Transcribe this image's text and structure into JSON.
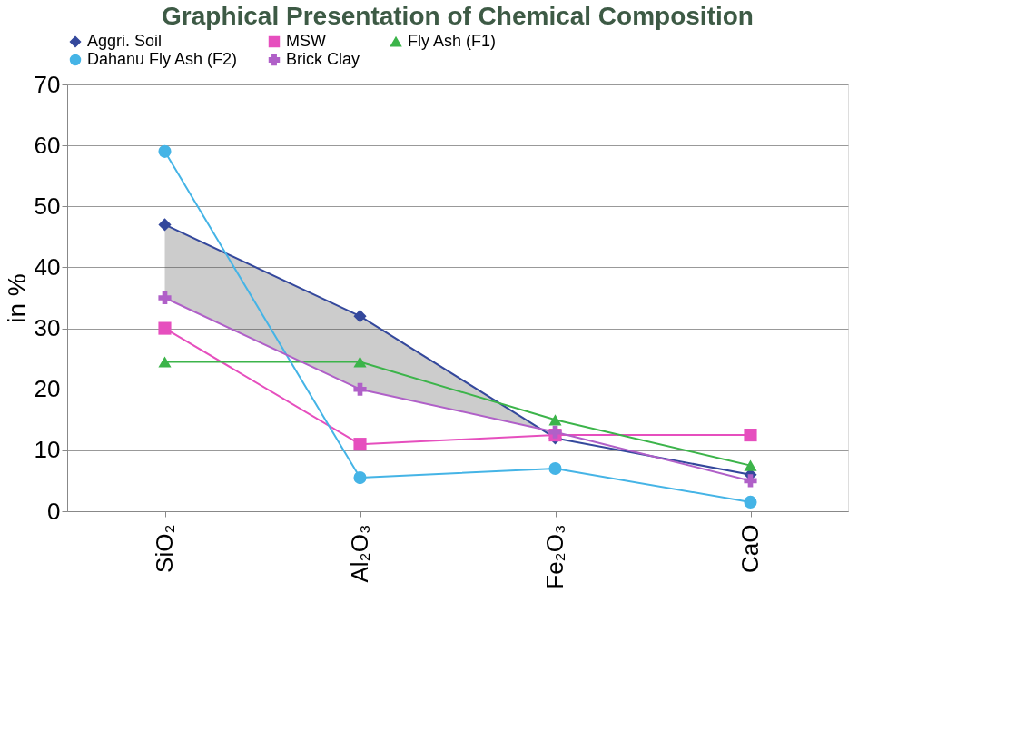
{
  "chart_data": {
    "type": "line",
    "title": "Graphical Presentation of Chemical Composition",
    "ylabel": "in %",
    "categories": [
      "SiO₂",
      "Al₂O₃",
      "Fe₂O₃",
      "CaO"
    ],
    "series": [
      {
        "name": "Aggri. Soil",
        "color": "#34489c",
        "marker": "diamond",
        "values": [
          47,
          32,
          12,
          6
        ],
        "lower": [
          35,
          20,
          13,
          null
        ],
        "upper": [
          47,
          32,
          12,
          null
        ]
      },
      {
        "name": "MSW",
        "color": "#e64fbe",
        "marker": "square",
        "values": [
          30,
          11,
          12.5,
          12.5
        ]
      },
      {
        "name": "Fly Ash (F1)",
        "color": "#3cb44a",
        "marker": "triangle",
        "values": [
          24.5,
          24.5,
          15,
          7.5
        ]
      },
      {
        "name": "Dahanu Fly Ash (F2)",
        "color": "#45b4e6",
        "marker": "circle",
        "values": [
          59,
          5.5,
          7,
          1.5
        ]
      },
      {
        "name": "Brick Clay",
        "color": "#b060c8",
        "marker": "cross",
        "values": [
          35,
          20,
          13,
          5
        ]
      }
    ],
    "ylim": [
      0,
      70
    ],
    "yticks": [
      0,
      10,
      20,
      30,
      40,
      50,
      60,
      70
    ],
    "grid": "y",
    "legend": "top",
    "line_style": "solid"
  }
}
